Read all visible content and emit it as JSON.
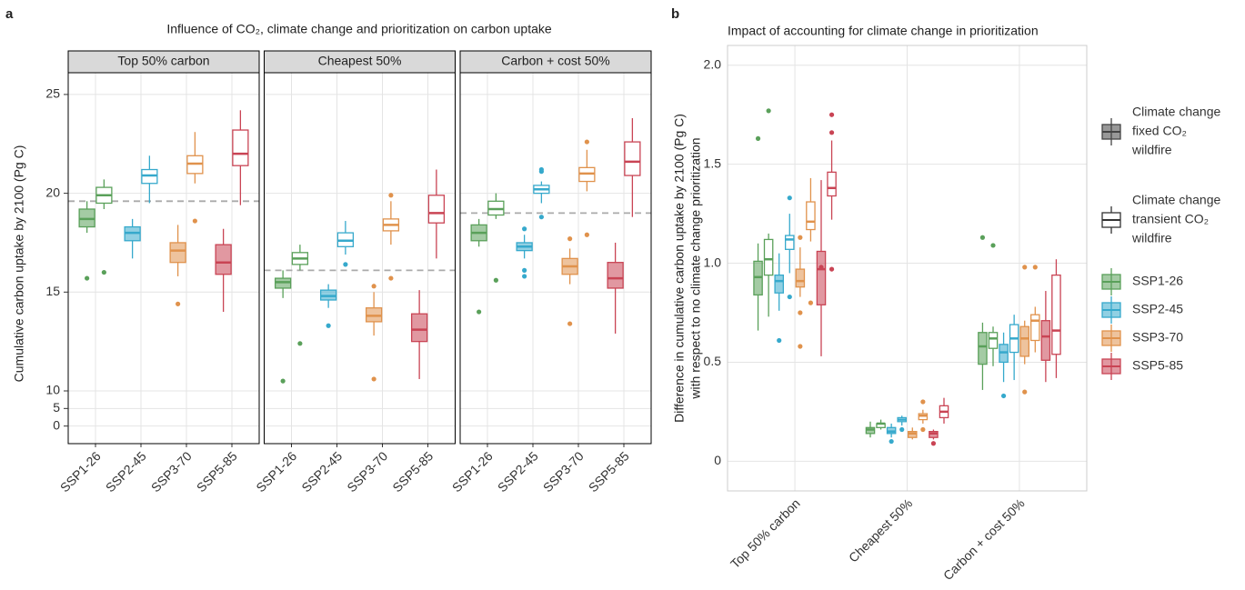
{
  "chart_data": [
    {
      "type": "box",
      "panel_label": "a",
      "title": "Influence of CO₂, climate change and prioritization on carbon uptake",
      "y_label": "Cumulative carbon uptake by 2100 (Pg C)",
      "ylim": [
        -5,
        26.1
      ],
      "yticks": [
        0,
        5,
        10,
        15,
        20,
        25
      ],
      "grid": true,
      "categories": [
        "SSP1-26",
        "SSP2-45",
        "SSP3-70",
        "SSP5-85"
      ],
      "colors": [
        "#5aa05a",
        "#36a9cc",
        "#e0924c",
        "#c94454"
      ],
      "facets": [
        {
          "title": "Top 50% carbon",
          "reference_line": 19.6,
          "boxes": [
            {
              "fixed": {
                "low": 18.0,
                "q1": 18.3,
                "median": 18.7,
                "q3": 19.2,
                "high": 19.6,
                "outliers": [
                  15.7
                ]
              },
              "transient": {
                "low": 19.2,
                "q1": 19.5,
                "median": 19.9,
                "q3": 20.3,
                "high": 20.7,
                "outliers": [
                  16.0
                ]
              }
            },
            {
              "fixed": {
                "low": 16.7,
                "q1": 17.6,
                "median": 18.0,
                "q3": 18.3,
                "high": 18.7,
                "outliers": []
              },
              "transient": {
                "low": 19.5,
                "q1": 20.5,
                "median": 20.9,
                "q3": 21.2,
                "high": 21.9,
                "outliers": []
              }
            },
            {
              "fixed": {
                "low": 15.8,
                "q1": 16.5,
                "median": 17.1,
                "q3": 17.5,
                "high": 18.4,
                "outliers": [
                  14.4
                ]
              },
              "transient": {
                "low": 20.5,
                "q1": 21.0,
                "median": 21.5,
                "q3": 21.9,
                "high": 23.1,
                "outliers": [
                  18.6
                ]
              }
            },
            {
              "fixed": {
                "low": 14.0,
                "q1": 15.9,
                "median": 16.5,
                "q3": 17.4,
                "high": 18.2,
                "outliers": []
              },
              "transient": {
                "low": 19.4,
                "q1": 21.4,
                "median": 22.0,
                "q3": 23.2,
                "high": 24.2,
                "outliers": []
              }
            }
          ]
        },
        {
          "title": "Cheapest 50%",
          "reference_line": 16.1,
          "boxes": [
            {
              "fixed": {
                "low": 14.7,
                "q1": 15.2,
                "median": 15.5,
                "q3": 15.7,
                "high": 16.1,
                "outliers": [
                  10.5
                ]
              },
              "transient": {
                "low": 16.1,
                "q1": 16.4,
                "median": 16.7,
                "q3": 17.0,
                "high": 17.4,
                "outliers": [
                  12.4
                ]
              }
            },
            {
              "fixed": {
                "low": 14.2,
                "q1": 14.6,
                "median": 14.8,
                "q3": 15.1,
                "high": 15.4,
                "outliers": [
                  13.3
                ]
              },
              "transient": {
                "low": 16.9,
                "q1": 17.3,
                "median": 17.6,
                "q3": 18.0,
                "high": 18.6,
                "outliers": [
                  16.4
                ]
              }
            },
            {
              "fixed": {
                "low": 12.8,
                "q1": 13.5,
                "median": 13.8,
                "q3": 14.2,
                "high": 15.0,
                "outliers": [
                  15.3,
                  10.6
                ]
              },
              "transient": {
                "low": 17.4,
                "q1": 18.1,
                "median": 18.4,
                "q3": 18.7,
                "high": 19.6,
                "outliers": [
                  19.9,
                  15.7
                ]
              }
            },
            {
              "fixed": {
                "low": 10.6,
                "q1": 12.5,
                "median": 13.1,
                "q3": 13.9,
                "high": 15.1,
                "outliers": []
              },
              "transient": {
                "low": 16.7,
                "q1": 18.5,
                "median": 19.0,
                "q3": 19.9,
                "high": 21.2,
                "outliers": []
              }
            }
          ]
        },
        {
          "title": "Carbon + cost 50%",
          "reference_line": 19.0,
          "boxes": [
            {
              "fixed": {
                "low": 17.3,
                "q1": 17.6,
                "median": 18.0,
                "q3": 18.4,
                "high": 18.7,
                "outliers": [
                  14.0
                ]
              },
              "transient": {
                "low": 18.7,
                "q1": 18.9,
                "median": 19.2,
                "q3": 19.6,
                "high": 20.0,
                "outliers": [
                  15.6
                ]
              }
            },
            {
              "fixed": {
                "low": 16.7,
                "q1": 17.1,
                "median": 17.3,
                "q3": 17.5,
                "high": 17.9,
                "outliers": [
                  18.2,
                  16.1,
                  15.8
                ]
              },
              "transient": {
                "low": 19.5,
                "q1": 20.0,
                "median": 20.2,
                "q3": 20.4,
                "high": 20.6,
                "outliers": [
                  21.2,
                  21.1,
                  18.8
                ]
              }
            },
            {
              "fixed": {
                "low": 15.4,
                "q1": 15.9,
                "median": 16.3,
                "q3": 16.7,
                "high": 17.2,
                "outliers": [
                  17.7,
                  13.4
                ]
              },
              "transient": {
                "low": 20.1,
                "q1": 20.6,
                "median": 21.0,
                "q3": 21.3,
                "high": 22.2,
                "outliers": [
                  22.6,
                  17.9
                ]
              }
            },
            {
              "fixed": {
                "low": 12.9,
                "q1": 15.2,
                "median": 15.7,
                "q3": 16.5,
                "high": 17.5,
                "outliers": []
              },
              "transient": {
                "low": 18.8,
                "q1": 20.9,
                "median": 21.6,
                "q3": 22.6,
                "high": 23.8,
                "outliers": []
              }
            }
          ]
        }
      ]
    },
    {
      "type": "box",
      "panel_label": "b",
      "title": "Impact of accounting for climate change in prioritization",
      "y_label": [
        "Difference in cumulative carbon uptake by 2100 (Pg C)",
        "with respect to no climate change prioritization"
      ],
      "ylim": [
        -0.15,
        2.1
      ],
      "yticks": [
        0,
        0.5,
        {
          "value": 1,
          "label": "1.0"
        },
        1.5,
        {
          "value": 2,
          "label": "2.0"
        }
      ],
      "grid": true,
      "categories": [
        "Top 50% carbon",
        "Cheapest 50%",
        "Carbon + cost 50%"
      ],
      "series": [
        {
          "name": "SSP1-26",
          "color": "#5aa05a"
        },
        {
          "name": "SSP2-45",
          "color": "#36a9cc"
        },
        {
          "name": "SSP3-70",
          "color": "#e0924c"
        },
        {
          "name": "SSP5-85",
          "color": "#c94454"
        }
      ],
      "fill_legend": [
        [
          "Climate change",
          "fixed CO₂",
          "wildfire"
        ],
        [
          "Climate change",
          "transient CO₂",
          "wildfire"
        ]
      ],
      "boxes": [
        [
          {
            "fixed": {
              "low": 0.66,
              "q1": 0.84,
              "median": 0.93,
              "q3": 1.01,
              "high": 1.1,
              "outliers": [
                1.63
              ]
            },
            "transient": {
              "low": 0.73,
              "q1": 0.94,
              "median": 1.02,
              "q3": 1.12,
              "high": 1.15,
              "outliers": [
                1.77
              ]
            }
          },
          {
            "fixed": {
              "low": 0.76,
              "q1": 0.85,
              "median": 0.91,
              "q3": 0.94,
              "high": 1.05,
              "outliers": [
                0.61
              ]
            },
            "transient": {
              "low": 0.95,
              "q1": 1.07,
              "median": 1.12,
              "q3": 1.14,
              "high": 1.25,
              "outliers": [
                1.33,
                0.83
              ]
            }
          },
          {
            "fixed": {
              "low": 0.83,
              "q1": 0.88,
              "median": 0.91,
              "q3": 0.97,
              "high": 1.08,
              "outliers": [
                1.13,
                0.75,
                0.58
              ]
            },
            "transient": {
              "low": 1.11,
              "q1": 1.17,
              "median": 1.21,
              "q3": 1.31,
              "high": 1.43,
              "outliers": [
                0.8
              ]
            }
          },
          {
            "fixed": {
              "low": 0.53,
              "q1": 0.79,
              "median": 0.97,
              "q3": 1.06,
              "high": 1.42,
              "outliers": [
                0.98
              ]
            },
            "transient": {
              "low": 1.22,
              "q1": 1.34,
              "median": 1.38,
              "q3": 1.46,
              "high": 1.62,
              "outliers": [
                1.75,
                1.66,
                0.97
              ]
            }
          }
        ],
        [
          {
            "fixed": {
              "low": 0.12,
              "q1": 0.14,
              "median": 0.16,
              "q3": 0.17,
              "high": 0.2,
              "outliers": []
            },
            "transient": {
              "low": 0.16,
              "q1": 0.17,
              "median": 0.19,
              "q3": 0.19,
              "high": 0.21,
              "outliers": []
            }
          },
          {
            "fixed": {
              "low": 0.12,
              "q1": 0.14,
              "median": 0.15,
              "q3": 0.17,
              "high": 0.19,
              "outliers": [
                0.1
              ]
            },
            "transient": {
              "low": 0.18,
              "q1": 0.2,
              "median": 0.21,
              "q3": 0.22,
              "high": 0.23,
              "outliers": [
                0.16
              ]
            }
          },
          {
            "fixed": {
              "low": 0.11,
              "q1": 0.12,
              "median": 0.14,
              "q3": 0.15,
              "high": 0.17,
              "outliers": []
            },
            "transient": {
              "low": 0.19,
              "q1": 0.21,
              "median": 0.23,
              "q3": 0.24,
              "high": 0.26,
              "outliers": [
                0.3,
                0.16
              ]
            }
          },
          {
            "fixed": {
              "low": 0.11,
              "q1": 0.12,
              "median": 0.14,
              "q3": 0.15,
              "high": 0.16,
              "outliers": [
                0.09
              ]
            },
            "transient": {
              "low": 0.19,
              "q1": 0.22,
              "median": 0.25,
              "q3": 0.28,
              "high": 0.32,
              "outliers": []
            }
          }
        ],
        [
          {
            "fixed": {
              "low": 0.36,
              "q1": 0.49,
              "median": 0.58,
              "q3": 0.65,
              "high": 0.7,
              "outliers": [
                1.13
              ]
            },
            "transient": {
              "low": 0.48,
              "q1": 0.57,
              "median": 0.62,
              "q3": 0.65,
              "high": 0.68,
              "outliers": [
                1.09
              ]
            }
          },
          {
            "fixed": {
              "low": 0.4,
              "q1": 0.5,
              "median": 0.55,
              "q3": 0.59,
              "high": 0.65,
              "outliers": [
                0.33
              ]
            },
            "transient": {
              "low": 0.41,
              "q1": 0.55,
              "median": 0.62,
              "q3": 0.69,
              "high": 0.74,
              "outliers": []
            }
          },
          {
            "fixed": {
              "low": 0.49,
              "q1": 0.53,
              "median": 0.62,
              "q3": 0.68,
              "high": 0.71,
              "outliers": [
                0.98,
                0.35
              ]
            },
            "transient": {
              "low": 0.55,
              "q1": 0.61,
              "median": 0.71,
              "q3": 0.74,
              "high": 0.78,
              "outliers": [
                0.98
              ]
            }
          },
          {
            "fixed": {
              "low": 0.4,
              "q1": 0.51,
              "median": 0.63,
              "q3": 0.71,
              "high": 0.86,
              "outliers": []
            },
            "transient": {
              "low": 0.42,
              "q1": 0.54,
              "median": 0.66,
              "q3": 0.94,
              "high": 1.02,
              "outliers": []
            }
          }
        ]
      ]
    }
  ]
}
